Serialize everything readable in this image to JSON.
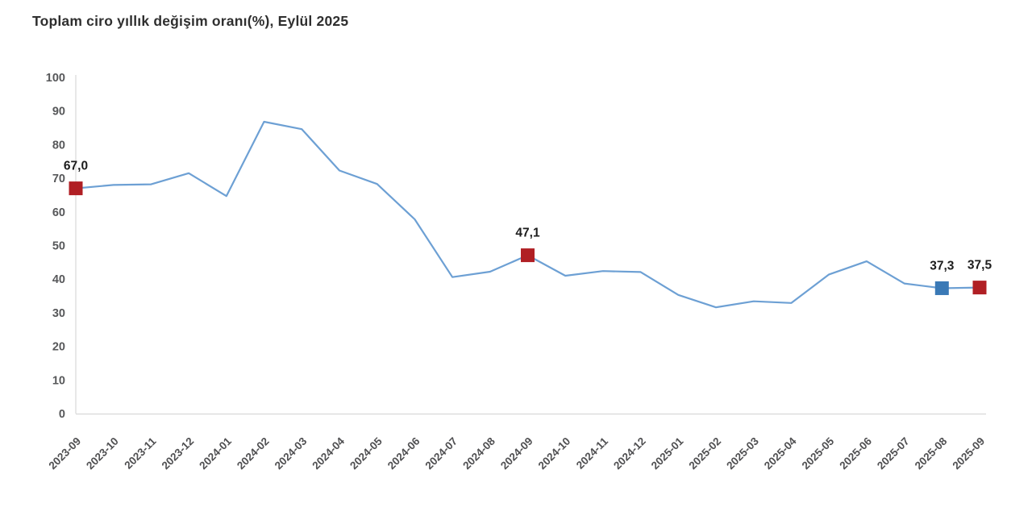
{
  "page": {
    "background_color": "#ffffff"
  },
  "chart_data": {
    "type": "line",
    "title": "Toplam ciro yıllık değişim oranı(%), Eylül 2025",
    "categories": [
      "2023-09",
      "2023-10",
      "2023-11",
      "2023-12",
      "2024-01",
      "2024-02",
      "2024-03",
      "2024-04",
      "2024-05",
      "2024-06",
      "2024-07",
      "2024-08",
      "2024-09",
      "2024-10",
      "2024-11",
      "2024-12",
      "2025-01",
      "2025-02",
      "2025-03",
      "2025-04",
      "2025-05",
      "2025-06",
      "2025-07",
      "2025-08",
      "2025-09"
    ],
    "values": [
      67.0,
      68.0,
      68.2,
      71.5,
      64.7,
      86.8,
      84.6,
      72.3,
      68.3,
      57.8,
      40.6,
      42.2,
      47.1,
      41.0,
      42.4,
      42.1,
      35.3,
      31.6,
      33.4,
      32.9,
      41.4,
      45.3,
      38.7,
      37.3,
      37.5
    ],
    "ylim": [
      0,
      100
    ],
    "y_ticks": [
      0,
      10,
      20,
      30,
      40,
      50,
      60,
      70,
      80,
      90,
      100
    ],
    "grid": false,
    "legend_position": "none",
    "x_label_rotation_deg": -45,
    "line_color": "#6da0d4",
    "axis_color": "#d8d8d8",
    "annotated_points": [
      {
        "category": "2023-09",
        "value": 67.0,
        "label": "67,0",
        "marker": "square",
        "marker_color": "#b01f24"
      },
      {
        "category": "2024-09",
        "value": 47.1,
        "label": "47,1",
        "marker": "square",
        "marker_color": "#b01f24"
      },
      {
        "category": "2025-08",
        "value": 37.3,
        "label": "37,3",
        "marker": "square",
        "marker_color": "#3a79b6"
      },
      {
        "category": "2025-09",
        "value": 37.5,
        "label": "37,5",
        "marker": "square",
        "marker_color": "#b01f24"
      }
    ]
  }
}
